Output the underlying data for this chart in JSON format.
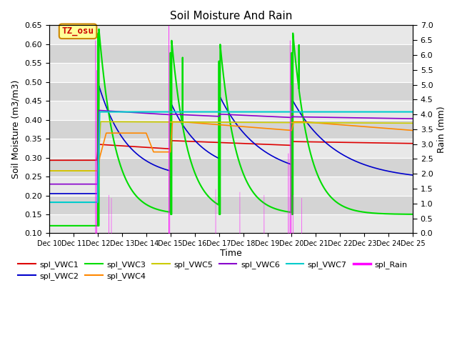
{
  "title": "Soil Moisture And Rain",
  "xlabel": "Time",
  "ylabel_left": "Soil Moisture (m3/m3)",
  "ylabel_right": "Rain (mm)",
  "ylim_left": [
    0.1,
    0.65
  ],
  "ylim_right": [
    0.0,
    7.0
  ],
  "yticks_left": [
    0.1,
    0.15,
    0.2,
    0.25,
    0.3,
    0.35,
    0.4,
    0.45,
    0.5,
    0.55,
    0.6,
    0.65
  ],
  "yticks_right": [
    0.0,
    0.5,
    1.0,
    1.5,
    2.0,
    2.5,
    3.0,
    3.5,
    4.0,
    4.5,
    5.0,
    5.5,
    6.0,
    6.5,
    7.0
  ],
  "xtick_labels": [
    "Dec 10",
    "Dec 11",
    "Dec 12",
    "Dec 13",
    "Dec 14",
    "Dec 15",
    "Dec 16",
    "Dec 17",
    "Dec 18",
    "Dec 19",
    "Dec 20",
    "Dec 21",
    "Dec 22",
    "Dec 23",
    "Dec 24",
    "Dec 25"
  ],
  "label_box_text": "TZ_osu",
  "label_box_color": "#ffff99",
  "label_box_edge": "#cc8800",
  "label_box_text_color": "#cc0000",
  "colors": {
    "VWC1": "#dd0000",
    "VWC2": "#0000cc",
    "VWC3": "#00dd00",
    "VWC4": "#ff8800",
    "VWC5": "#cccc00",
    "VWC6": "#8800cc",
    "VWC7": "#00cccc",
    "Rain": "#ff00ff"
  },
  "bg_light": "#e8e8e8",
  "bg_dark": "#d4d4d4",
  "grid_color": "#ffffff"
}
